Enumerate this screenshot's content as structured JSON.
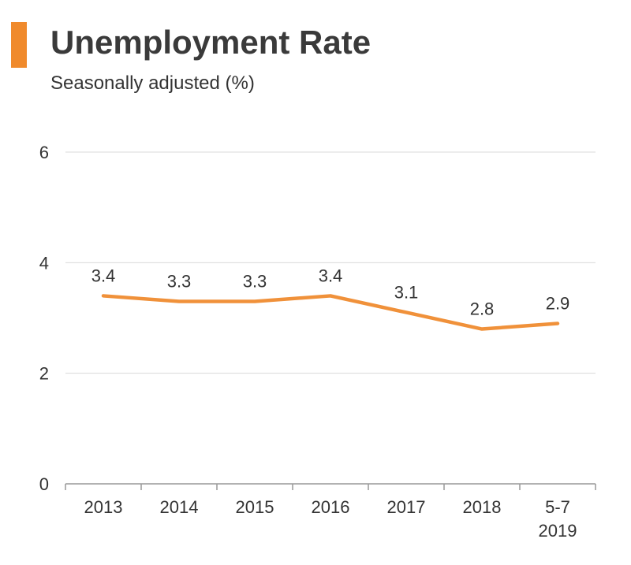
{
  "header": {
    "title": "Unemployment Rate",
    "subtitle": "Seasonally adjusted (%)"
  },
  "colors": {
    "accent": "#f08a2c",
    "line": "#f0913a",
    "grid": "#d9d9d9",
    "axis": "#999999",
    "text": "#333333"
  },
  "chart_data": {
    "type": "line",
    "title": "Unemployment Rate",
    "subtitle": "Seasonally adjusted (%)",
    "xlabel": "",
    "ylabel": "",
    "categories": [
      "2013",
      "2014",
      "2015",
      "2016",
      "2017",
      "2018",
      "5-7\n2019"
    ],
    "category_lines": [
      [
        "2013"
      ],
      [
        "2014"
      ],
      [
        "2015"
      ],
      [
        "2016"
      ],
      [
        "2017"
      ],
      [
        "2018"
      ],
      [
        "5-7",
        "2019"
      ]
    ],
    "series": [
      {
        "values": [
          3.4,
          3.3,
          3.3,
          3.4,
          3.1,
          2.8,
          2.9
        ]
      }
    ],
    "data_labels": [
      "3.4",
      "3.3",
      "3.3",
      "3.4",
      "3.1",
      "2.8",
      "2.9"
    ],
    "ylim": [
      0,
      6
    ],
    "yticks": [
      0,
      2,
      4,
      6
    ],
    "ytick_labels": [
      "0",
      "2",
      "4",
      "6"
    ],
    "grid": true,
    "legend": "none"
  }
}
